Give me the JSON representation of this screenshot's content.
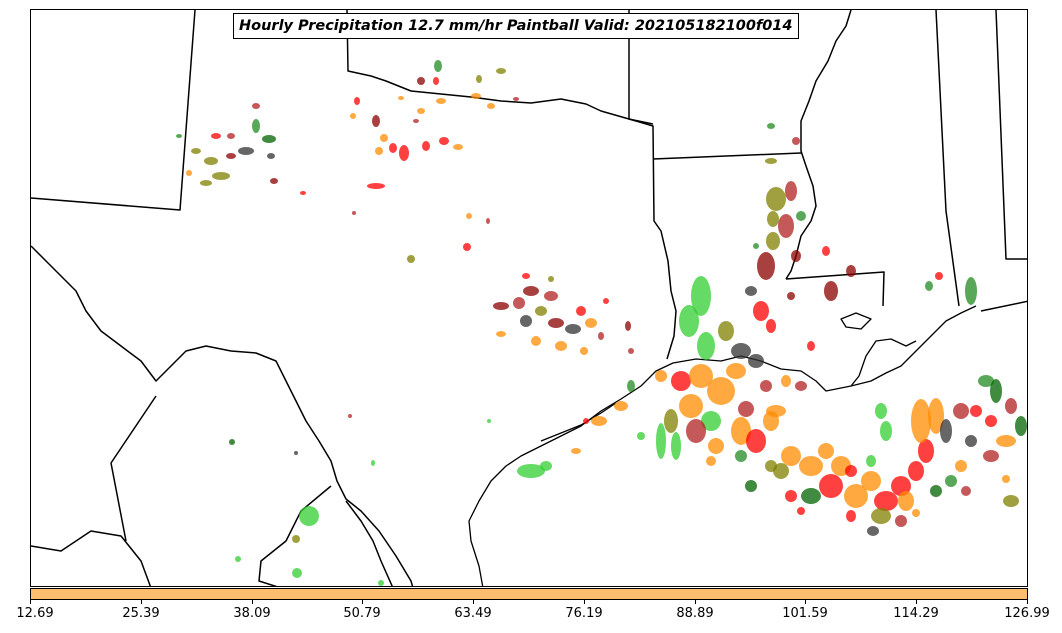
{
  "title": "Hourly Precipitation 12.7 mm/hr Paintball Valid: 202105182100f014",
  "colorbar": {
    "color": "#fdbf6f",
    "ticks": [
      "12.69",
      "25.39",
      "38.09",
      "50.79",
      "63.49",
      "76.19",
      "88.89",
      "101.59",
      "114.29",
      "126.99"
    ]
  },
  "member_colors": [
    "#ff0000",
    "#ff8c00",
    "#006400",
    "#228b22",
    "#32cd32",
    "#808000",
    "#8b0000",
    "#333333",
    "#b22222"
  ]
}
